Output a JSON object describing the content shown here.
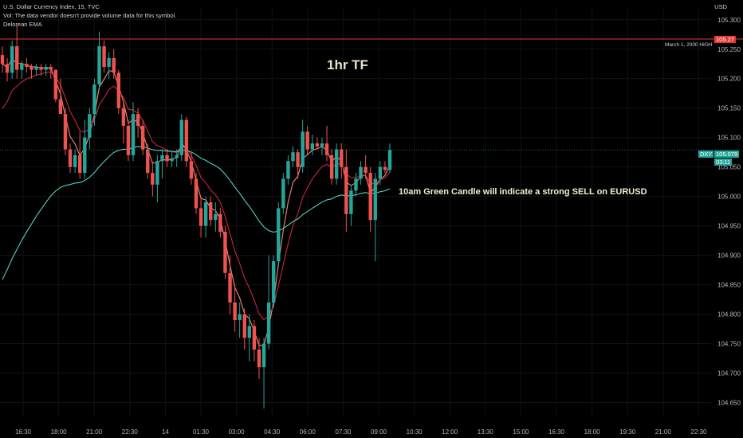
{
  "header": {
    "symbol_line": "U.S. Dollar Currency Index, 15, TVC",
    "vol_line": "Vol: The data vendor doesn't provide volume data for this symbol.",
    "indicator_line": "Delorean EMA"
  },
  "currency_label": "USD",
  "annotations": {
    "timeframe": "1hr TF",
    "note": "10am Green Candle will indicate a strong SELL on EURUSD",
    "high_label": "March 1, 2000 HIGH"
  },
  "price_tags": {
    "high_level": "105.27",
    "symbol_tag": "DXY",
    "last_price": "105.079",
    "countdown": "03:11"
  },
  "colors": {
    "up": "#26a69a",
    "down": "#ef5350",
    "ema_fast": "#f08a7a",
    "ema_mid": "#c8283c",
    "ema_slow": "#4fd1c5",
    "high_line": "#e53935"
  },
  "chart_data": {
    "type": "candlestick",
    "interval": "15m",
    "y_ticks": [
      "105.300",
      "105.250",
      "105.200",
      "105.150",
      "105.100",
      "105.050",
      "105.000",
      "104.950",
      "104.900",
      "104.850",
      "104.800",
      "104.750",
      "104.700",
      "104.650"
    ],
    "x_ticks": [
      "16:30",
      "18:00",
      "21:00",
      "22:30",
      "14",
      "01:30",
      "03:00",
      "04:30",
      "06:00",
      "07:30",
      "09:00",
      "10:30",
      "12:00",
      "13:30",
      "15:00",
      "16:30",
      "18:00",
      "19:30",
      "21:00",
      "22:30"
    ],
    "ylim": [
      104.625,
      105.32
    ],
    "high_level": 105.27,
    "candles": [
      [
        105.24,
        105.255,
        105.21,
        105.225
      ],
      [
        105.225,
        105.235,
        105.195,
        105.21
      ],
      [
        105.21,
        105.265,
        105.2,
        105.255
      ],
      [
        105.255,
        105.29,
        105.2,
        105.215
      ],
      [
        105.215,
        105.23,
        105.2,
        105.225
      ],
      [
        105.225,
        105.235,
        105.21,
        105.22
      ],
      [
        105.22,
        105.225,
        105.2,
        105.215
      ],
      [
        105.215,
        105.225,
        105.205,
        105.22
      ],
      [
        105.22,
        105.225,
        105.205,
        105.215
      ],
      [
        105.215,
        105.225,
        105.205,
        105.22
      ],
      [
        105.22,
        105.225,
        105.2,
        105.215
      ],
      [
        105.215,
        105.215,
        105.16,
        105.165
      ],
      [
        105.165,
        105.2,
        105.14,
        105.14
      ],
      [
        105.14,
        105.15,
        105.07,
        105.08
      ],
      [
        105.08,
        105.09,
        105.04,
        105.05
      ],
      [
        105.05,
        105.08,
        105.04,
        105.07
      ],
      [
        105.07,
        105.11,
        105.03,
        105.04
      ],
      [
        105.04,
        105.13,
        105.03,
        105.1
      ],
      [
        105.1,
        105.15,
        105.08,
        105.14
      ],
      [
        105.14,
        105.2,
        105.12,
        105.19
      ],
      [
        105.19,
        105.28,
        105.18,
        105.255
      ],
      [
        105.255,
        105.265,
        105.21,
        105.22
      ],
      [
        105.22,
        105.245,
        105.2,
        105.235
      ],
      [
        105.235,
        105.25,
        105.2,
        105.21
      ],
      [
        105.21,
        105.215,
        105.14,
        105.15
      ],
      [
        105.15,
        105.16,
        105.09,
        105.12
      ],
      [
        105.12,
        105.13,
        105.06,
        105.07
      ],
      [
        105.07,
        105.16,
        105.06,
        105.14
      ],
      [
        105.14,
        105.15,
        105.1,
        105.12
      ],
      [
        105.12,
        105.13,
        105.07,
        105.08
      ],
      [
        105.08,
        105.09,
        105.03,
        105.04
      ],
      [
        105.04,
        105.06,
        105.0,
        105.02
      ],
      [
        105.02,
        105.07,
        104.99,
        105.06
      ],
      [
        105.06,
        105.08,
        105.03,
        105.07
      ],
      [
        105.07,
        105.08,
        105.05,
        105.06
      ],
      [
        105.06,
        105.075,
        105.05,
        105.065
      ],
      [
        105.065,
        105.08,
        105.05,
        105.07
      ],
      [
        105.07,
        105.14,
        105.06,
        105.13
      ],
      [
        105.13,
        105.135,
        105.05,
        105.06
      ],
      [
        105.06,
        105.075,
        105.02,
        105.03
      ],
      [
        105.03,
        105.04,
        104.97,
        104.98
      ],
      [
        104.98,
        105.0,
        104.93,
        104.95
      ],
      [
        104.95,
        105.0,
        104.93,
        104.99
      ],
      [
        104.99,
        105.0,
        104.95,
        104.96
      ],
      [
        104.96,
        104.99,
        104.94,
        104.97
      ],
      [
        104.97,
        104.98,
        104.93,
        104.94
      ],
      [
        104.94,
        104.95,
        104.86,
        104.87
      ],
      [
        104.87,
        104.9,
        104.8,
        104.82
      ],
      [
        104.82,
        104.85,
        104.77,
        104.79
      ],
      [
        104.79,
        104.82,
        104.76,
        104.8
      ],
      [
        104.8,
        104.81,
        104.74,
        104.76
      ],
      [
        104.76,
        104.8,
        104.72,
        104.78
      ],
      [
        104.78,
        104.79,
        104.72,
        104.74
      ],
      [
        104.74,
        104.76,
        104.69,
        104.71
      ],
      [
        104.71,
        104.76,
        104.64,
        104.75
      ],
      [
        104.75,
        104.9,
        104.74,
        104.82
      ],
      [
        104.82,
        104.9,
        104.81,
        104.89
      ],
      [
        104.89,
        104.99,
        104.88,
        104.98
      ],
      [
        104.98,
        105.04,
        104.97,
        105.03
      ],
      [
        105.03,
        105.07,
        105.02,
        105.06
      ],
      [
        105.06,
        105.085,
        105.05,
        105.075
      ],
      [
        105.075,
        105.08,
        105.03,
        105.05
      ],
      [
        105.05,
        105.13,
        105.04,
        105.11
      ],
      [
        105.11,
        105.12,
        105.07,
        105.08
      ],
      [
        105.08,
        105.105,
        105.07,
        105.09
      ],
      [
        105.09,
        105.1,
        105.08,
        105.085
      ],
      [
        105.085,
        105.1,
        105.07,
        105.09
      ],
      [
        105.09,
        105.12,
        105.06,
        105.07
      ],
      [
        105.07,
        105.08,
        105.02,
        105.03
      ],
      [
        105.03,
        105.09,
        105.02,
        105.08
      ],
      [
        105.08,
        105.09,
        105.03,
        105.05
      ],
      [
        105.05,
        105.08,
        104.94,
        104.97
      ],
      [
        104.97,
        105.02,
        104.95,
        105.01
      ],
      [
        105.01,
        105.04,
        105.0,
        105.03
      ],
      [
        105.03,
        105.06,
        105.02,
        105.05
      ],
      [
        105.05,
        105.07,
        105.03,
        105.04
      ],
      [
        105.04,
        105.05,
        104.94,
        104.96
      ],
      [
        104.96,
        105.04,
        104.89,
        105.03
      ],
      [
        105.03,
        105.06,
        105.02,
        105.05
      ],
      [
        105.05,
        105.06,
        105.04,
        105.045
      ],
      [
        105.045,
        105.09,
        105.04,
        105.079
      ]
    ]
  }
}
